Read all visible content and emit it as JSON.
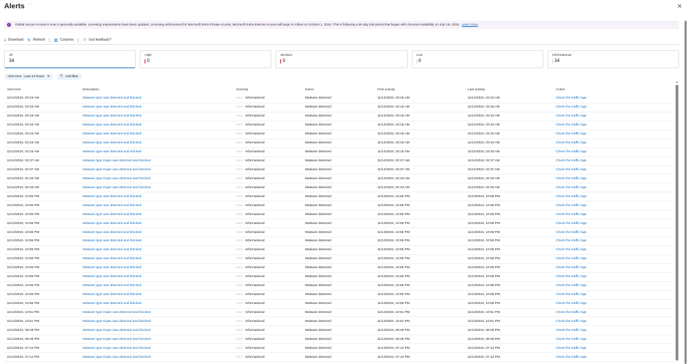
{
  "header": {
    "title": "Alerts",
    "more_label": "···",
    "close_icon": "close-icon"
  },
  "banner": {
    "text": "Global Secure Access is now in generally available. Licensing requirements have been updated. Licensing enforcement for Microsoft Entra Private Access, Microsoft Entra Internet Access will begin to rollout on October 1, 2024. This is following a 90-day trial period that began with General Availability on July 1st, 2024.",
    "link": "Learn more",
    "icon": "info-icon"
  },
  "toolbar": {
    "download": "Download",
    "refresh": "Refresh",
    "columns": "Columns",
    "feedback": "Got feedback?"
  },
  "cards": [
    {
      "label": "All",
      "value": "34"
    },
    {
      "label": "High",
      "value": "0",
      "color": "#c50f1f"
    },
    {
      "label": "Medium",
      "value": "0",
      "color": "#c50f1f"
    },
    {
      "label": "Low",
      "value": "0",
      "color": "#cccccc"
    },
    {
      "label": "Informational",
      "value": "34",
      "color": "#cccccc"
    }
  ],
  "filters": {
    "active": "Alert time : Last 24 hours",
    "add": "Add filter"
  },
  "table": {
    "columns": [
      "Alert time",
      "Description",
      "Severity",
      "Name",
      "First activity",
      "Last activity",
      "Action"
    ],
    "rows": [
      {
        "time": "11/14/2024, 03:15 AM",
        "desc": "Malware type was detected and blocked",
        "sev": "Informational",
        "name": "Malware detected",
        "first": "11/14/2024, 03:15 AM",
        "last": "11/14/2024, 03:15 AM",
        "action": "Check the traffic logs"
      },
      {
        "time": "11/14/2024, 03:15 AM",
        "desc": "Malware type was detected and blocked",
        "sev": "Informational",
        "name": "Malware detected",
        "first": "11/14/2024, 03:15 AM",
        "last": "11/14/2024, 03:15 AM",
        "action": "Check the traffic logs"
      },
      {
        "time": "11/14/2024, 03:15 AM",
        "desc": "Malware type was detected and blocked",
        "sev": "Informational",
        "name": "Malware detected",
        "first": "11/14/2024, 03:15 AM",
        "last": "11/14/2024, 03:15 AM",
        "action": "Check the traffic logs"
      },
      {
        "time": "11/14/2024, 03:15 AM",
        "desc": "Malware type was detected and blocked",
        "sev": "Informational",
        "name": "Malware detected",
        "first": "11/14/2024, 03:15 AM",
        "last": "11/14/2024, 03:15 AM",
        "action": "Check the traffic logs"
      },
      {
        "time": "11/14/2024, 03:15 AM",
        "desc": "Malware type was detected and blocked",
        "sev": "Informational",
        "name": "Malware detected",
        "first": "11/14/2024, 03:15 AM",
        "last": "11/14/2024, 03:15 AM",
        "action": "Check the traffic logs"
      },
      {
        "time": "11/14/2024, 03:15 AM",
        "desc": "Malware type was detected and blocked",
        "sev": "Informational",
        "name": "Malware detected",
        "first": "11/14/2024, 03:15 AM",
        "last": "11/14/2024, 03:15 AM",
        "action": "Check the traffic logs"
      },
      {
        "time": "11/14/2024, 03:15 AM",
        "desc": "Malware type was detected and blocked",
        "sev": "Informational",
        "name": "Malware detected",
        "first": "11/14/2024, 03:15 AM",
        "last": "11/14/2024, 03:15 AM",
        "action": "Check the traffic logs"
      },
      {
        "time": "11/14/2024, 02:37 AM",
        "desc": "Malware type trojan was detected and blocked",
        "sev": "Informational",
        "name": "Malware detected",
        "first": "11/14/2024, 02:37 AM",
        "last": "11/14/2024, 02:37 AM",
        "action": "Check the traffic logs"
      },
      {
        "time": "11/14/2024, 02:37 AM",
        "desc": "Malware type trojan was detected and blocked",
        "sev": "Informational",
        "name": "Malware detected",
        "first": "11/14/2024, 02:37 AM",
        "last": "11/14/2024, 02:37 AM",
        "action": "Check the traffic logs"
      },
      {
        "time": "11/14/2024, 02:33 AM",
        "desc": "Malware type trojan was detected and blocked",
        "sev": "Informational",
        "name": "Malware detected",
        "first": "11/14/2024, 02:33 AM",
        "last": "11/14/2024, 02:33 AM",
        "action": "Check the traffic logs"
      },
      {
        "time": "11/14/2024, 02:33 AM",
        "desc": "Malware type trojan was detected and blocked",
        "sev": "Informational",
        "name": "Malware detected",
        "first": "11/14/2024, 02:33 AM",
        "last": "11/14/2024, 02:33 AM",
        "action": "Check the traffic logs"
      },
      {
        "time": "11/13/2024, 10:55 PM",
        "desc": "Malware type was detected and blocked",
        "sev": "Informational",
        "name": "Malware detected",
        "first": "11/13/2024, 10:55 PM",
        "last": "11/13/2024, 10:55 PM",
        "action": "Check the traffic logs"
      },
      {
        "time": "11/13/2024, 10:55 PM",
        "desc": "Malware type was detected and blocked",
        "sev": "Informational",
        "name": "Malware detected",
        "first": "11/13/2024, 10:55 PM",
        "last": "11/13/2024, 10:55 PM",
        "action": "Check the traffic logs"
      },
      {
        "time": "11/13/2024, 10:55 PM",
        "desc": "Malware type was detected and blocked",
        "sev": "Informational",
        "name": "Malware detected",
        "first": "11/13/2024, 10:55 PM",
        "last": "11/13/2024, 10:55 PM",
        "action": "Check the traffic logs"
      },
      {
        "time": "11/13/2024, 10:55 PM",
        "desc": "Malware type was detected and blocked",
        "sev": "Informational",
        "name": "Malware detected",
        "first": "11/13/2024, 10:55 PM",
        "last": "11/13/2024, 10:55 PM",
        "action": "Check the traffic logs"
      },
      {
        "time": "11/13/2024, 10:55 PM",
        "desc": "Malware type was detected and blocked",
        "sev": "Informational",
        "name": "Malware detected",
        "first": "11/13/2024, 10:55 PM",
        "last": "11/13/2024, 10:55 PM",
        "action": "Check the traffic logs"
      },
      {
        "time": "11/13/2024, 10:55 PM",
        "desc": "Malware type was detected and blocked",
        "sev": "Informational",
        "name": "Malware detected",
        "first": "11/13/2024, 10:55 PM",
        "last": "11/13/2024, 10:55 PM",
        "action": "Check the traffic logs"
      },
      {
        "time": "11/13/2024, 10:55 PM",
        "desc": "Malware type was detected and blocked",
        "sev": "Informational",
        "name": "Malware detected",
        "first": "11/13/2024, 10:55 PM",
        "last": "11/13/2024, 10:55 PM",
        "action": "Check the traffic logs"
      },
      {
        "time": "11/13/2024, 10:55 PM",
        "desc": "Malware type was detected and blocked",
        "sev": "Informational",
        "name": "Malware detected",
        "first": "11/13/2024, 10:55 PM",
        "last": "11/13/2024, 10:55 PM",
        "action": "Check the traffic logs"
      },
      {
        "time": "11/13/2024, 10:55 PM",
        "desc": "Malware type was detected and blocked",
        "sev": "Informational",
        "name": "Malware detected",
        "first": "11/13/2024, 10:55 PM",
        "last": "11/13/2024, 10:55 PM",
        "action": "Check the traffic logs"
      },
      {
        "time": "11/13/2024, 10:55 PM",
        "desc": "Malware type was detected and blocked",
        "sev": "Informational",
        "name": "Malware detected",
        "first": "11/13/2024, 10:55 PM",
        "last": "11/13/2024, 10:55 PM",
        "action": "Check the traffic logs"
      },
      {
        "time": "11/13/2024, 10:55 PM",
        "desc": "Malware type was detected and blocked",
        "sev": "Informational",
        "name": "Malware detected",
        "first": "11/13/2024, 10:55 PM",
        "last": "11/13/2024, 10:55 PM",
        "action": "Check the traffic logs"
      },
      {
        "time": "11/13/2024, 10:55 PM",
        "desc": "Malware type was detected and blocked",
        "sev": "Informational",
        "name": "Malware detected",
        "first": "11/13/2024, 10:55 PM",
        "last": "11/13/2024, 10:55 PM",
        "action": "Check the traffic logs"
      },
      {
        "time": "11/13/2024, 10:55 PM",
        "desc": "Malware type was detected and blocked",
        "sev": "Informational",
        "name": "Malware detected",
        "first": "11/13/2024, 10:55 PM",
        "last": "11/13/2024, 10:55 PM",
        "action": "Check the traffic logs"
      },
      {
        "time": "11/13/2024, 10:51 PM",
        "desc": "Malware type trojan was detected and blocked",
        "sev": "Informational",
        "name": "Malware detected",
        "first": "11/13/2024, 10:51 PM",
        "last": "11/13/2024, 10:51 PM",
        "action": "Check the traffic logs"
      },
      {
        "time": "11/13/2024, 10:51 PM",
        "desc": "Malware type trojan was detected and blocked",
        "sev": "Informational",
        "name": "Malware detected",
        "first": "11/13/2024, 10:51 PM",
        "last": "11/13/2024, 10:51 PM",
        "action": "Check the traffic logs"
      },
      {
        "time": "11/13/2024, 08:28 PM",
        "desc": "Malware type trojan was detected and blocked",
        "sev": "Informational",
        "name": "Malware detected",
        "first": "11/13/2024, 08:28 PM",
        "last": "11/13/2024, 08:28 PM",
        "action": "Check the traffic logs"
      },
      {
        "time": "11/13/2024, 08:28 PM",
        "desc": "Malware type trojan was detected and blocked",
        "sev": "Informational",
        "name": "Malware detected",
        "first": "11/13/2024, 08:28 PM",
        "last": "11/13/2024, 08:28 PM",
        "action": "Check the traffic logs"
      },
      {
        "time": "11/13/2024, 07:12 PM",
        "desc": "Malware type trojan was detected and blocked",
        "sev": "Informational",
        "name": "Malware detected",
        "first": "11/13/2024, 07:12 PM",
        "last": "11/13/2024, 07:12 PM",
        "action": "Check the traffic logs"
      },
      {
        "time": "11/13/2024, 07:12 PM",
        "desc": "Malware type trojan was detected and blocked",
        "sev": "Informational",
        "name": "Malware detected",
        "first": "11/13/2024, 07:12 PM",
        "last": "11/13/2024, 07:12 PM",
        "action": "Check the traffic logs"
      }
    ]
  }
}
